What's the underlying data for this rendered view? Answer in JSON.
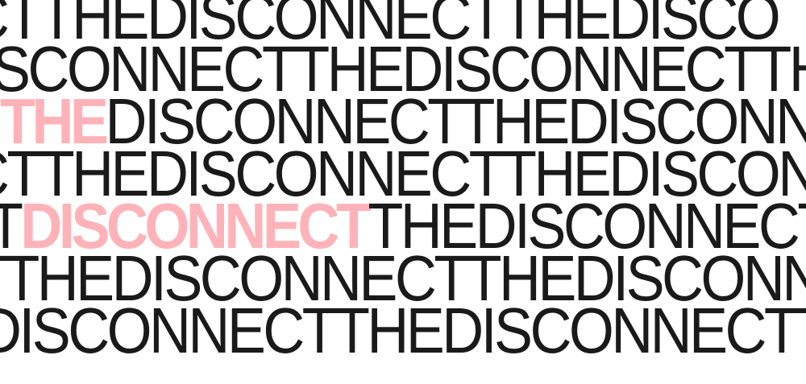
{
  "rows": [
    {
      "parts": [
        {
          "text": "CTTHEDISCONNECTTHEDISCO",
          "highlight": false
        }
      ]
    },
    {
      "parts": [
        {
          "text": "SCONNECTTHEDISCONNECTTHEDISC",
          "highlight": false
        }
      ]
    },
    {
      "parts": [
        {
          "text": "THE",
          "highlight": true
        },
        {
          "text": "DISCONNECTTHEDISCONNECTTHE",
          "highlight": false
        }
      ]
    },
    {
      "parts": [
        {
          "text": "CTTHEDISCONNECTTHEDISCONN",
          "highlight": false
        }
      ]
    },
    {
      "parts": [
        {
          "text": "T",
          "highlight": false
        },
        {
          "text": "DISCONNECT",
          "highlight": true
        },
        {
          "text": "THEDISCONNECTTHE",
          "highlight": false
        }
      ]
    },
    {
      "parts": [
        {
          "text": "TTHEDISCONNECTTHEDISCONN",
          "highlight": false
        }
      ]
    },
    {
      "parts": [
        {
          "text": "DISCONNECTTHEDISCONNECTTHE",
          "highlight": false
        }
      ]
    },
    {
      "parts": [
        {
          "text": "",
          "highlight": false
        }
      ]
    }
  ],
  "colors": {
    "text": "#1a1a1a",
    "highlight": "#ffb3b8",
    "background": "#ffffff"
  }
}
